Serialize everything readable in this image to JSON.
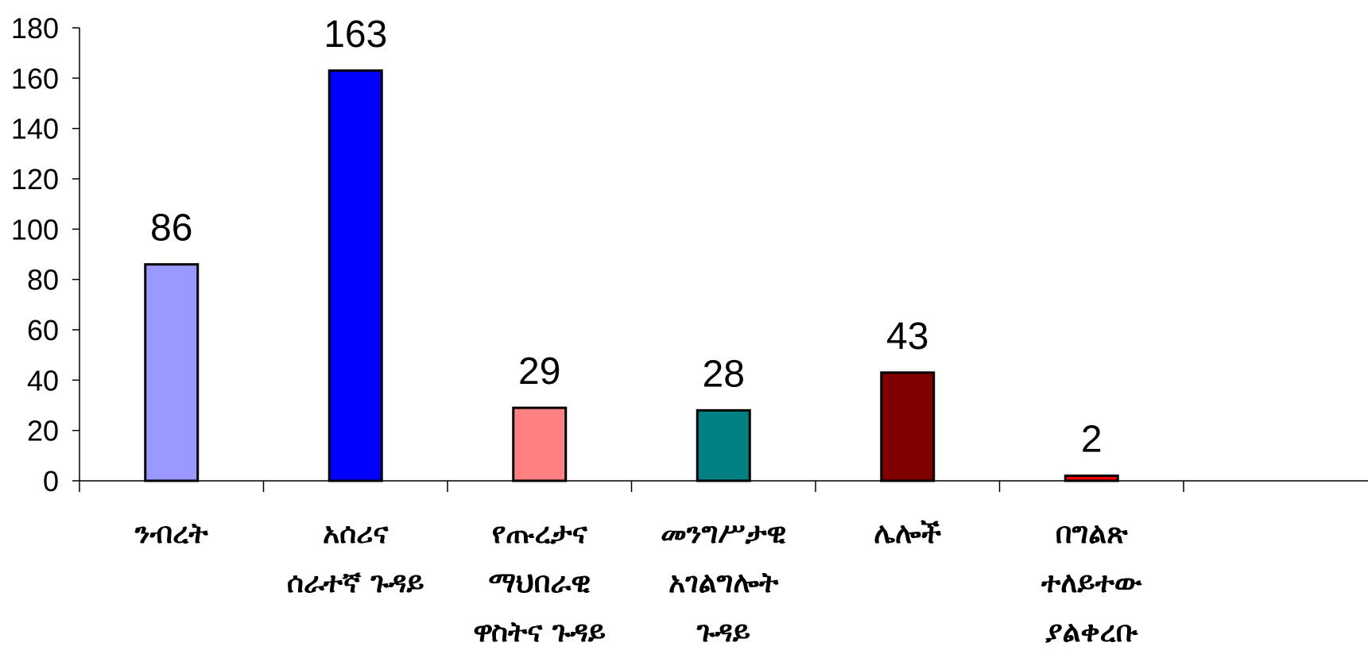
{
  "chart_data": {
    "type": "bar",
    "title": "",
    "xlabel": "",
    "ylabel": "",
    "ylim": [
      0,
      180
    ],
    "yticks": [
      0,
      20,
      40,
      60,
      80,
      100,
      120,
      140,
      160,
      180
    ],
    "grid": false,
    "legend": "none",
    "categories": [
      "ንብረት",
      "አሰሪና ሰራተኛ ጉዳይ",
      "የጡረታና ማህበራዊ ዋስትና ጉዳይ",
      "መንግሥታዊ አገልግሎት ጉዳይ",
      "ሌሎች",
      "በግልጽ ተለይተው ያልቀረቡ"
    ],
    "category_label_lines": [
      [
        "ንብረት"
      ],
      [
        "አሰሪና",
        "ሰራተኛ ጉዳይ"
      ],
      [
        "የጡረታና",
        "ማህበራዊ",
        "ዋስትና ጉዳይ"
      ],
      [
        "መንግሥታዊ",
        "አገልግሎት",
        "ጉዳይ"
      ],
      [
        "ሌሎች"
      ],
      [
        "በግልጽ",
        "ተለይተው",
        "ያልቀረቡ"
      ]
    ],
    "values": [
      86,
      163,
      29,
      28,
      43,
      2
    ],
    "data_labels": [
      "86",
      "163",
      "29",
      "28",
      "43",
      "2"
    ],
    "colors": [
      "#9999ff",
      "#0000ff",
      "#ff8080",
      "#008080",
      "#800000",
      "#ff0000"
    ]
  }
}
